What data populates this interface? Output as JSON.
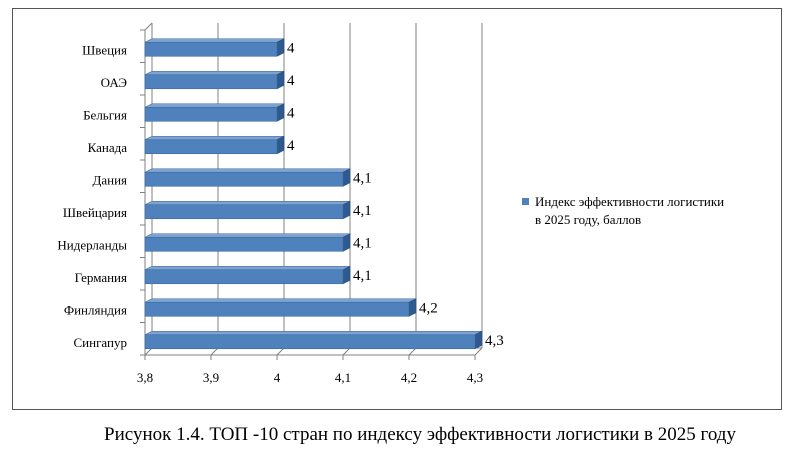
{
  "chart_data": {
    "type": "bar",
    "orientation": "horizontal",
    "style": "3d",
    "categories": [
      "Швеция",
      "ОАЭ",
      "Бельгия",
      "Канада",
      "Дания",
      "Швейцария",
      "Нидерланды",
      "Германия",
      "Финляндия",
      "Сингапур"
    ],
    "series": [
      {
        "name": "Индекс эффективности логистики в 2025 году, баллов",
        "values": [
          4,
          4,
          4,
          4,
          4.1,
          4.1,
          4.1,
          4.1,
          4.2,
          4.3
        ],
        "value_labels": [
          "4",
          "4",
          "4",
          "4",
          "4,1",
          "4,1",
          "4,1",
          "4,1",
          "4,2",
          "4,3"
        ],
        "color": "#4f81bd"
      }
    ],
    "xlim": [
      3.8,
      4.3
    ],
    "x_ticks": [
      3.8,
      3.9,
      4.0,
      4.1,
      4.2,
      4.3
    ],
    "x_tick_labels": [
      "3,8",
      "3,9",
      "4",
      "4,1",
      "4,2",
      "4,3"
    ],
    "grid": true,
    "legend_position": "right",
    "legend_line1": "Индекс эффективности логистики",
    "legend_line2": "в 2025 году, баллов"
  },
  "caption": "Рисунок 1.4. ТОП -10 стран по индексу эффективности логистики в 2025 году"
}
